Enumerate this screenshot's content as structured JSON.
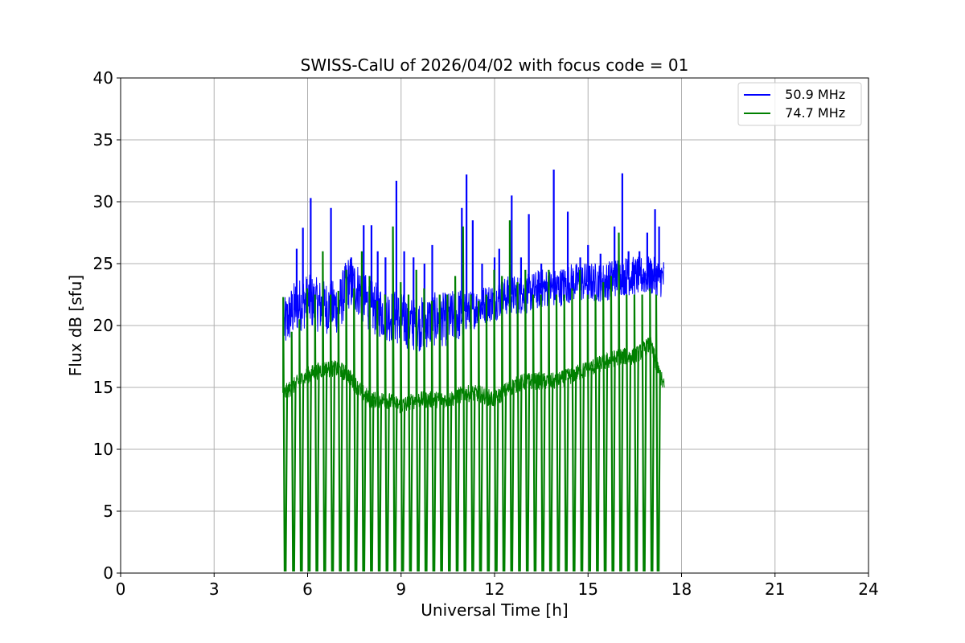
{
  "chart_data": {
    "type": "line",
    "title": "SWISS-CalU of 2026/04/02 with focus code = 01",
    "xlabel": "Universal Time [h]",
    "ylabel": "Flux dB [sfu]",
    "xlim": [
      0,
      24
    ],
    "ylim": [
      0,
      40
    ],
    "xticks": [
      "0",
      "3",
      "6",
      "9",
      "12",
      "15",
      "18",
      "21",
      "24"
    ],
    "yticks": [
      "0",
      "5",
      "10",
      "15",
      "20",
      "25",
      "30",
      "35",
      "40"
    ],
    "grid": true,
    "legend_position": "top-right",
    "series": [
      {
        "name": "  50.9 MHz",
        "color": "#0000ff",
        "baseline": {
          "x": [
            5.25,
            5.6,
            6.0,
            6.5,
            7.0,
            7.3,
            7.6,
            8.0,
            8.5,
            9.0,
            9.5,
            10.0,
            10.5,
            11.0,
            11.5,
            12.0,
            12.5,
            13.0,
            13.5,
            14.0,
            14.5,
            15.0,
            15.5,
            16.0,
            16.5,
            17.0,
            17.45
          ],
          "y": [
            20.0,
            21.5,
            22.0,
            21.5,
            21.5,
            23.5,
            23.0,
            21.5,
            21.0,
            20.5,
            20.0,
            20.5,
            20.5,
            21.0,
            21.5,
            22.0,
            22.5,
            22.5,
            23.0,
            23.0,
            23.5,
            23.5,
            23.5,
            24.0,
            24.0,
            24.0,
            23.8
          ]
        },
        "peaks": [
          {
            "x": 5.65,
            "y": 26.2
          },
          {
            "x": 5.85,
            "y": 27.9
          },
          {
            "x": 6.1,
            "y": 30.3
          },
          {
            "x": 6.75,
            "y": 29.5
          },
          {
            "x": 7.4,
            "y": 25.5
          },
          {
            "x": 7.8,
            "y": 28.1
          },
          {
            "x": 8.05,
            "y": 28.1
          },
          {
            "x": 8.25,
            "y": 26.0
          },
          {
            "x": 8.5,
            "y": 25.5
          },
          {
            "x": 8.85,
            "y": 31.7
          },
          {
            "x": 9.1,
            "y": 26.0
          },
          {
            "x": 9.4,
            "y": 25.5
          },
          {
            "x": 9.75,
            "y": 25.0
          },
          {
            "x": 10.0,
            "y": 26.5
          },
          {
            "x": 10.95,
            "y": 29.5
          },
          {
            "x": 11.1,
            "y": 32.2
          },
          {
            "x": 11.3,
            "y": 28.5
          },
          {
            "x": 11.6,
            "y": 25.0
          },
          {
            "x": 12.0,
            "y": 25.5
          },
          {
            "x": 12.15,
            "y": 26.2
          },
          {
            "x": 12.55,
            "y": 30.5
          },
          {
            "x": 12.85,
            "y": 25.5
          },
          {
            "x": 13.1,
            "y": 29.0
          },
          {
            "x": 13.5,
            "y": 25.0
          },
          {
            "x": 13.9,
            "y": 32.6
          },
          {
            "x": 14.35,
            "y": 29.2
          },
          {
            "x": 14.75,
            "y": 25.5
          },
          {
            "x": 15.0,
            "y": 26.5
          },
          {
            "x": 15.4,
            "y": 25.8
          },
          {
            "x": 15.85,
            "y": 28.0
          },
          {
            "x": 16.1,
            "y": 32.3
          },
          {
            "x": 16.3,
            "y": 26.0
          },
          {
            "x": 16.65,
            "y": 26.0
          },
          {
            "x": 16.9,
            "y": 27.5
          },
          {
            "x": 17.15,
            "y": 29.4
          },
          {
            "x": 17.28,
            "y": 28.0
          }
        ]
      },
      {
        "name": "  74.7 MHz",
        "color": "#008000",
        "baseline": {
          "x": [
            5.25,
            5.5,
            6.0,
            6.5,
            7.0,
            7.3,
            7.6,
            8.0,
            8.5,
            9.0,
            9.5,
            10.0,
            10.5,
            11.0,
            11.5,
            12.0,
            12.5,
            13.0,
            13.5,
            14.0,
            14.5,
            15.0,
            15.5,
            16.0,
            16.5,
            17.0,
            17.3,
            17.45
          ],
          "y": [
            14.5,
            15.0,
            16.0,
            16.5,
            16.5,
            16.0,
            15.0,
            14.0,
            14.0,
            13.5,
            14.0,
            14.0,
            14.0,
            14.5,
            14.5,
            14.0,
            15.0,
            15.5,
            15.5,
            15.5,
            16.0,
            16.5,
            17.0,
            17.5,
            17.5,
            18.5,
            16.0,
            15.0
          ]
        },
        "dips_x": [
          5.28,
          5.55,
          5.8,
          6.05,
          6.3,
          6.55,
          6.8,
          7.05,
          7.3,
          7.55,
          7.8,
          8.05,
          8.3,
          8.55,
          8.8,
          9.05,
          9.3,
          9.55,
          9.8,
          10.05,
          10.3,
          10.55,
          10.8,
          11.05,
          11.3,
          11.55,
          11.8,
          12.05,
          12.3,
          12.55,
          12.8,
          13.05,
          13.3,
          13.55,
          13.8,
          14.05,
          14.3,
          14.55,
          14.8,
          15.05,
          15.3,
          15.55,
          15.8,
          16.05,
          16.3,
          16.55,
          16.8,
          17.05,
          17.25
        ],
        "spike_tops": [
          22.3,
          19.5,
          20.5,
          23.0,
          22.5,
          26.0,
          22.5,
          22.8,
          24.5,
          23.0,
          26.0,
          24.0,
          22.0,
          22.5,
          28.0,
          23.5,
          22.5,
          24.5,
          23.0,
          22.0,
          22.5,
          22.5,
          24.0,
          28.0,
          22.5,
          22.0,
          22.5,
          24.5,
          24.0,
          28.5,
          23.5,
          24.5,
          22.5,
          22.5,
          24.5,
          22.5,
          22.5,
          23.0,
          24.5,
          22.5,
          22.5,
          23.5,
          24.0,
          27.5,
          22.5,
          22.5,
          22.5,
          23.0,
          22.5
        ]
      }
    ]
  }
}
